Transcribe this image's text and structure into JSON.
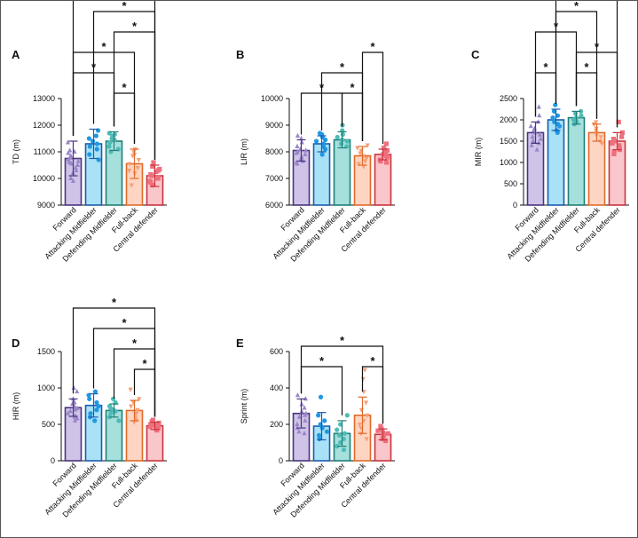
{
  "chart_data": [
    {
      "type": "bar",
      "panel": "A",
      "ylabel": "TD (m)",
      "ylim": [
        9000,
        13000
      ],
      "yticks": [
        9000,
        10000,
        11000,
        12000,
        13000
      ],
      "categories": [
        "Forward",
        "Attacking Midfielder",
        "Defending Midfielder",
        "Full-back",
        "Central defender"
      ],
      "values": [
        10750,
        11300,
        11400,
        10550,
        10100
      ],
      "errors": [
        650,
        550,
        350,
        550,
        400
      ],
      "points": [
        [
          11350,
          11050,
          10950,
          10850,
          10800,
          10700,
          10650,
          10600,
          10550,
          10500,
          10400,
          10300,
          10200,
          10000,
          9900,
          11000
        ],
        [
          11800,
          11600,
          11500,
          11400,
          11300,
          11200,
          11100,
          10900,
          10700
        ],
        [
          11700,
          11650,
          11600,
          11500,
          11450,
          11350,
          11200,
          11100,
          11000
        ],
        [
          11100,
          11000,
          10850,
          10700,
          10550,
          10400,
          10300,
          10200,
          9750,
          10900
        ],
        [
          10600,
          10450,
          10350,
          10250,
          10150,
          10100,
          10050,
          10000,
          9900,
          9850,
          9750,
          10300
        ]
      ],
      "significance": [
        [
          0,
          4
        ],
        [
          1,
          4
        ],
        [
          2,
          4
        ],
        [
          0,
          3
        ],
        [
          0,
          2
        ],
        [
          2,
          3
        ]
      ]
    },
    {
      "type": "bar",
      "panel": "B",
      "ylabel": "LIR (m)",
      "ylim": [
        6000,
        10000
      ],
      "yticks": [
        6000,
        7000,
        8000,
        9000,
        10000
      ],
      "categories": [
        "Forward",
        "Attacking Midfielder",
        "Defending Midfielder",
        "Full-back",
        "Central defender"
      ],
      "values": [
        8050,
        8300,
        8450,
        7850,
        7900
      ],
      "errors": [
        400,
        300,
        300,
        350,
        200
      ],
      "points": [
        [
          8600,
          8500,
          8350,
          8200,
          8100,
          8050,
          8000,
          7950,
          7900,
          7800,
          7700,
          7650,
          7600,
          7550
        ],
        [
          8700,
          8650,
          8550,
          8450,
          8400,
          8300,
          8200,
          8100,
          7900
        ],
        [
          9000,
          8800,
          8650,
          8550,
          8450,
          8400,
          8300,
          8200
        ],
        [
          8250,
          8150,
          8050,
          7950,
          7850,
          7750,
          7650,
          7550,
          7450
        ],
        [
          8300,
          8150,
          8050,
          8000,
          7950,
          7900,
          7850,
          7800,
          7700,
          7650,
          7600
        ]
      ],
      "significance": [
        [
          3,
          4
        ],
        [
          1,
          3
        ],
        [
          0,
          2
        ],
        [
          2,
          3
        ]
      ]
    },
    {
      "type": "bar",
      "panel": "C",
      "ylabel": "MIR (m)",
      "ylim": [
        0,
        2500
      ],
      "yticks": [
        0,
        500,
        1000,
        1500,
        2000,
        2500
      ],
      "categories": [
        "Forward",
        "Attacking Midfielder",
        "Defending Midfielder",
        "Full-back",
        "Central defender"
      ],
      "values": [
        1700,
        2000,
        2050,
        1700,
        1500
      ],
      "errors": [
        250,
        250,
        150,
        200,
        200
      ],
      "points": [
        [
          2300,
          2100,
          1950,
          1850,
          1800,
          1750,
          1700,
          1650,
          1600,
          1550,
          1500,
          1450,
          1400,
          1300
        ],
        [
          2350,
          2200,
          2100,
          2050,
          1950,
          1900,
          1850,
          1750,
          1700
        ],
        [
          2200,
          2150,
          2100,
          2050,
          2000,
          1950,
          1900
        ],
        [
          1950,
          1900,
          1800,
          1750,
          1700,
          1650,
          1600,
          1500,
          1450
        ],
        [
          1950,
          1700,
          1600,
          1550,
          1500,
          1450,
          1400,
          1350,
          1300,
          1250,
          1200
        ]
      ],
      "significance": [
        [
          1,
          4
        ],
        [
          1,
          3
        ],
        [
          0,
          2
        ],
        [
          2,
          4
        ],
        [
          0,
          1
        ],
        [
          2,
          3
        ]
      ]
    },
    {
      "type": "bar",
      "panel": "D",
      "ylabel": "HIR (m)",
      "ylim": [
        0,
        1500
      ],
      "yticks": [
        0,
        500,
        1000,
        1500
      ],
      "categories": [
        "Forward",
        "Attacking Midfielder",
        "Defending Midfielder",
        "Full-back",
        "Central defender"
      ],
      "values": [
        730,
        760,
        690,
        690,
        480
      ],
      "errors": [
        120,
        160,
        90,
        140,
        50
      ],
      "points": [
        [
          1000,
          950,
          850,
          800,
          780,
          750,
          720,
          700,
          680,
          650,
          620,
          600,
          580,
          550
        ],
        [
          950,
          900,
          850,
          800,
          750,
          700,
          650,
          600,
          550
        ],
        [
          850,
          800,
          750,
          720,
          700,
          680,
          650,
          600,
          550
        ],
        [
          980,
          850,
          800,
          750,
          700,
          680,
          650,
          600,
          560,
          530
        ],
        [
          560,
          540,
          520,
          500,
          490,
          480,
          470,
          460,
          450,
          440,
          420
        ]
      ],
      "significance": [
        [
          0,
          4
        ],
        [
          1,
          4
        ],
        [
          2,
          4
        ],
        [
          3,
          4
        ]
      ]
    },
    {
      "type": "bar",
      "panel": "E",
      "ylabel": "Sprint (m)",
      "ylim": [
        0,
        600
      ],
      "yticks": [
        0,
        200,
        400,
        600
      ],
      "categories": [
        "Forward",
        "Attacking Midfielder",
        "Defending Midfielder",
        "Full-back",
        "Central defender"
      ],
      "values": [
        260,
        190,
        150,
        250,
        145
      ],
      "errors": [
        80,
        75,
        70,
        100,
        30
      ],
      "points": [
        [
          360,
          340,
          310,
          290,
          270,
          260,
          250,
          240,
          220,
          200,
          180,
          160,
          150
        ],
        [
          350,
          250,
          220,
          200,
          180,
          160,
          140,
          120
        ],
        [
          250,
          200,
          170,
          150,
          140,
          120,
          100,
          80,
          60
        ],
        [
          500,
          450,
          380,
          320,
          280,
          250,
          220,
          200,
          180,
          150,
          120
        ],
        [
          190,
          175,
          165,
          155,
          150,
          145,
          140,
          130,
          120,
          110
        ]
      ],
      "significance": [
        [
          0,
          4
        ],
        [
          0,
          2
        ],
        [
          3,
          4
        ]
      ]
    }
  ],
  "significance_mark": "*",
  "colors": {
    "fills": [
      "#cfc3e8",
      "#a9e1f6",
      "#a6e0dc",
      "#fdd5c2",
      "#f9c6cb"
    ],
    "strokes": [
      "#4a357f",
      "#1a5db0",
      "#1f7f78",
      "#e06a28",
      "#c8343e"
    ],
    "dots": [
      "#9a86c8",
      "#1f98e3",
      "#4fbbb6",
      "#f5a07a",
      "#ef6f7c"
    ],
    "axis": "#111111"
  },
  "marker_shapes": [
    "triangle",
    "circle",
    "circle",
    "triangle-down",
    "square"
  ]
}
